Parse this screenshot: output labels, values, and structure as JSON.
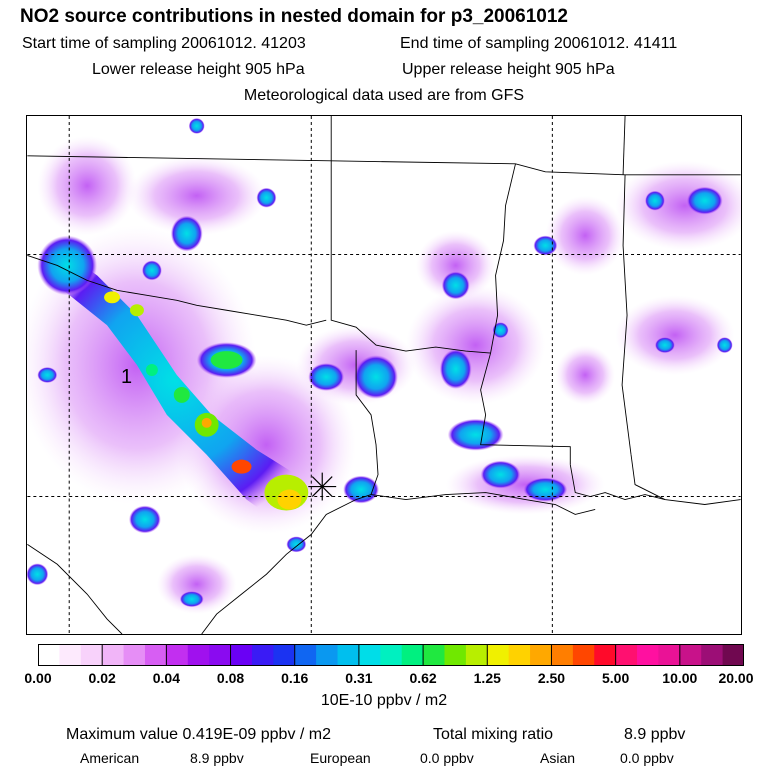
{
  "header": {
    "title": "NO2 source contributions in nested domain for p3_20061012",
    "start_time": "Start time of sampling 20061012. 41203",
    "end_time": "End time of sampling 20061012. 41411",
    "lower_release": "Lower release height  905 hPa",
    "upper_release": "Upper release height  905 hPa",
    "met_data": "Meteorological data used are from GFS"
  },
  "chart_data": {
    "type": "heatmap",
    "title": "NO2 source contributions in nested domain for p3_20061012",
    "units": "10E-10 ppbv / m2",
    "colorbar_ticks": [
      "0.00",
      "0.02",
      "0.04",
      "0.08",
      "0.16",
      "0.31",
      "0.62",
      "1.25",
      "2.50",
      "5.00",
      "10.00",
      "20.00"
    ],
    "colorbar_colors": [
      "#ffffff",
      "#fdeafd",
      "#f8d2fb",
      "#f1b5f8",
      "#e68ef6",
      "#d75ef3",
      "#c22ff0",
      "#a011ee",
      "#8a0bf0",
      "#6a00f5",
      "#3a1bf5",
      "#1b33f2",
      "#1066f2",
      "#0a98f0",
      "#00bfee",
      "#00dde8",
      "#00f0c0",
      "#00f080",
      "#20e840",
      "#70e800",
      "#b8ee00",
      "#f0f000",
      "#ffd200",
      "#ffa800",
      "#ff7e00",
      "#ff4600",
      "#ff0a2a",
      "#ff1070",
      "#ff10a0",
      "#ea1296",
      "#c8128a",
      "#9c0e76",
      "#700850"
    ],
    "receptor_label": "1",
    "maximum_value_text": "Maximum value  0.419E-09 ppbv / m2",
    "total_mixing_ratio_label": "Total mixing ratio",
    "total_mixing_ratio_value": "8.9 ppbv",
    "contributions": [
      {
        "name": "American",
        "value": "8.9 ppbv"
      },
      {
        "name": "European",
        "value": "0.0 ppbv"
      },
      {
        "name": "Asian",
        "value": "0.0 ppbv"
      }
    ]
  }
}
